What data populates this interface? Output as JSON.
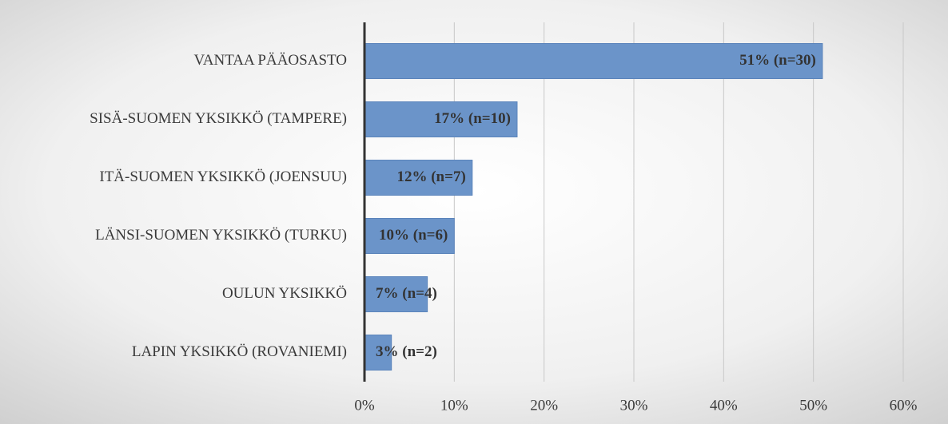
{
  "chart_data": {
    "type": "barh",
    "categories": [
      "VANTAA PÄÄOSASTO",
      "SISÄ-SUOMEN YKSIKKÖ (TAMPERE)",
      "ITÄ-SUOMEN YKSIKKÖ (JOENSUU)",
      "LÄNSI-SUOMEN YKSIKKÖ (TURKU)",
      "OULUN YKSIKKÖ",
      "LAPIN YKSIKKÖ (ROVANIEMI)"
    ],
    "values": [
      51,
      17,
      12,
      10,
      7,
      3
    ],
    "value_labels": [
      "51% (n=30)",
      "17% (n=10)",
      "12% (n=7)",
      "10% (n=6)",
      "7% (n=4)",
      "3% (n=2)"
    ],
    "color": "#6b94c9",
    "xlim": [
      0,
      60
    ],
    "xticks": [
      {
        "value": 0,
        "label": "0%"
      },
      {
        "value": 10,
        "label": "10%"
      },
      {
        "value": 20,
        "label": "20%"
      },
      {
        "value": 30,
        "label": "30%"
      },
      {
        "value": 40,
        "label": "40%"
      },
      {
        "value": 50,
        "label": "50%"
      },
      {
        "value": 60,
        "label": "60%"
      }
    ],
    "grid": true
  }
}
